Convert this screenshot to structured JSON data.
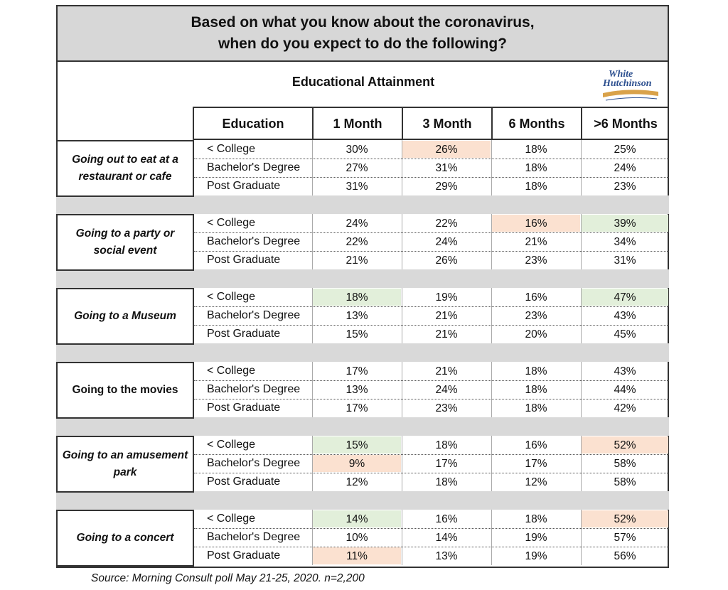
{
  "title": "Based on what you know about the coronavirus,\nwhen do you expect to do the following?",
  "subtitle": "Educational Attainment",
  "logo": {
    "line1": "White",
    "line2": "Hutchinson"
  },
  "colors": {
    "header_band": "#d7d7d7",
    "highlight_green": "#e2efda",
    "highlight_peach": "#fbe1d0",
    "logo_blue": "#2c4f8f"
  },
  "source": "Source: Morning Consult poll May 21-25, 2020. n=2,200",
  "chart_data": {
    "type": "table",
    "columns": [
      "Education",
      "1 Month",
      "3 Month",
      "6 Months",
      ">6 Months"
    ],
    "groups": [
      {
        "activity": "Going out to eat at a restaurant or cafe",
        "italic": true,
        "rows": [
          {
            "education": "< College",
            "values": [
              "30%",
              "26%",
              "18%",
              "25%"
            ],
            "highlight": [
              null,
              "peach",
              null,
              null
            ]
          },
          {
            "education": "Bachelor's Degree",
            "values": [
              "27%",
              "31%",
              "18%",
              "24%"
            ],
            "highlight": [
              null,
              null,
              null,
              null
            ]
          },
          {
            "education": "Post Graduate",
            "values": [
              "31%",
              "29%",
              "18%",
              "23%"
            ],
            "highlight": [
              null,
              null,
              null,
              null
            ]
          }
        ]
      },
      {
        "activity": "Going to a party or social event",
        "italic": true,
        "rows": [
          {
            "education": "< College",
            "values": [
              "24%",
              "22%",
              "16%",
              "39%"
            ],
            "highlight": [
              null,
              null,
              "peach",
              "green"
            ]
          },
          {
            "education": "Bachelor's Degree",
            "values": [
              "22%",
              "24%",
              "21%",
              "34%"
            ],
            "highlight": [
              null,
              null,
              null,
              null
            ]
          },
          {
            "education": "Post Graduate",
            "values": [
              "21%",
              "26%",
              "23%",
              "31%"
            ],
            "highlight": [
              null,
              null,
              null,
              null
            ]
          }
        ]
      },
      {
        "activity": "Going to a Museum",
        "italic": true,
        "rows": [
          {
            "education": "< College",
            "values": [
              "18%",
              "19%",
              "16%",
              "47%"
            ],
            "highlight": [
              "green",
              null,
              null,
              "green"
            ]
          },
          {
            "education": "Bachelor's Degree",
            "values": [
              "13%",
              "21%",
              "23%",
              "43%"
            ],
            "highlight": [
              null,
              null,
              null,
              null
            ]
          },
          {
            "education": "Post Graduate",
            "values": [
              "15%",
              "21%",
              "20%",
              "45%"
            ],
            "highlight": [
              null,
              null,
              null,
              null
            ]
          }
        ]
      },
      {
        "activity": "Going to the movies",
        "italic": false,
        "rows": [
          {
            "education": "< College",
            "values": [
              "17%",
              "21%",
              "18%",
              "43%"
            ],
            "highlight": [
              null,
              null,
              null,
              null
            ]
          },
          {
            "education": "Bachelor's Degree",
            "values": [
              "13%",
              "24%",
              "18%",
              "44%"
            ],
            "highlight": [
              null,
              null,
              null,
              null
            ]
          },
          {
            "education": "Post Graduate",
            "values": [
              "17%",
              "23%",
              "18%",
              "42%"
            ],
            "highlight": [
              null,
              null,
              null,
              null
            ]
          }
        ]
      },
      {
        "activity": "Going to an amusement park",
        "italic": true,
        "rows": [
          {
            "education": "< College",
            "values": [
              "15%",
              "18%",
              "16%",
              "52%"
            ],
            "highlight": [
              "green",
              null,
              null,
              "peach"
            ]
          },
          {
            "education": "Bachelor's Degree",
            "values": [
              "9%",
              "17%",
              "17%",
              "58%"
            ],
            "highlight": [
              "peach",
              null,
              null,
              null
            ]
          },
          {
            "education": "Post Graduate",
            "values": [
              "12%",
              "18%",
              "12%",
              "58%"
            ],
            "highlight": [
              null,
              null,
              null,
              null
            ]
          }
        ]
      },
      {
        "activity": "Going to a concert",
        "italic": true,
        "rows": [
          {
            "education": "< College",
            "values": [
              "14%",
              "16%",
              "18%",
              "52%"
            ],
            "highlight": [
              "green",
              null,
              null,
              "peach"
            ]
          },
          {
            "education": "Bachelor's Degree",
            "values": [
              "10%",
              "14%",
              "19%",
              "57%"
            ],
            "highlight": [
              null,
              null,
              null,
              null
            ]
          },
          {
            "education": "Post Graduate",
            "values": [
              "11%",
              "13%",
              "19%",
              "56%"
            ],
            "highlight": [
              "peach",
              null,
              null,
              null
            ]
          }
        ]
      }
    ]
  }
}
